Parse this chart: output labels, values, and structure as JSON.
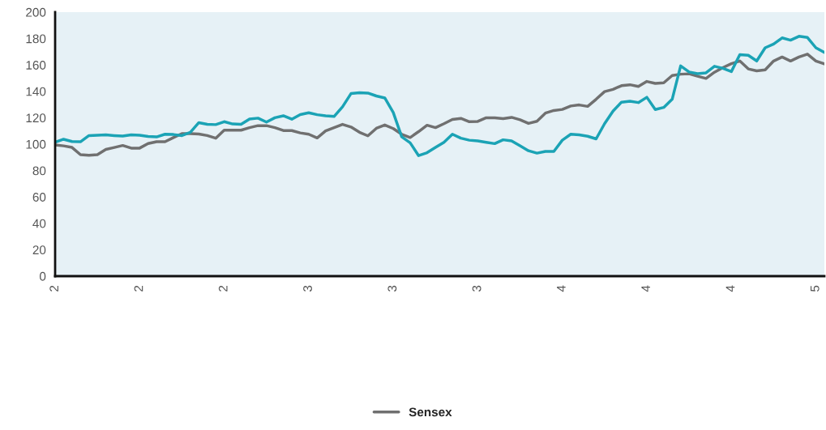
{
  "chart_data": {
    "type": "line",
    "categories": [
      "2",
      null,
      null,
      null,
      null,
      null,
      null,
      null,
      null,
      null,
      "2",
      null,
      null,
      null,
      null,
      null,
      null,
      null,
      null,
      null,
      "2",
      null,
      null,
      null,
      null,
      null,
      null,
      null,
      null,
      null,
      "3",
      null,
      null,
      null,
      null,
      null,
      null,
      null,
      null,
      null,
      "3",
      null,
      null,
      null,
      null,
      null,
      null,
      null,
      null,
      null,
      "3",
      null,
      null,
      null,
      null,
      null,
      null,
      null,
      null,
      null,
      "4",
      null,
      null,
      null,
      null,
      null,
      null,
      null,
      null,
      null,
      "4",
      null,
      null,
      null,
      null,
      null,
      null,
      null,
      null,
      null,
      "4",
      null,
      null,
      null,
      null,
      null,
      null,
      null,
      null,
      null,
      "5",
      null
    ],
    "ylim": [
      0,
      200
    ],
    "yticks": [
      0,
      20,
      40,
      60,
      80,
      100,
      120,
      140,
      160,
      180,
      200
    ],
    "grid": false,
    "legend": "bottom",
    "series": [
      {
        "name": "Sensex",
        "color": "#707070",
        "values": [
          99.4,
          98.7,
          97.5,
          92,
          91.5,
          92,
          96,
          97.5,
          99,
          97,
          97,
          100.5,
          101.8,
          101.8,
          105,
          108,
          108,
          107.7,
          106.5,
          104.5,
          110.6,
          110.6,
          110.6,
          112.5,
          114,
          114,
          112.5,
          110.3,
          110.3,
          108.5,
          107.5,
          104.7,
          110,
          112.5,
          115,
          113,
          109,
          106.3,
          112,
          114.5,
          111.8,
          107.5,
          105,
          109.5,
          114.3,
          112.5,
          115.5,
          118.7,
          119.5,
          117,
          117.2,
          120,
          120,
          119.3,
          120.3,
          118.5,
          115.7,
          117.3,
          123.5,
          125.5,
          126.3,
          128.9,
          129.7,
          128.6,
          134,
          139.8,
          141.5,
          144.3,
          145,
          143.7,
          147.5,
          146,
          146.5,
          152,
          153,
          153.3,
          151.5,
          149.8,
          154.5,
          158,
          161,
          163,
          157,
          155.5,
          156.3,
          163,
          166,
          163,
          166,
          168.2,
          163,
          160.8
        ]
      },
      {
        "color": "#1ba3b5",
        "values": [
          101.4,
          103.7,
          102,
          101.8,
          106.5,
          106.8,
          107,
          106.5,
          106.1,
          107,
          106.8,
          105.8,
          105.5,
          107.5,
          107.3,
          106.5,
          109,
          116.3,
          115,
          114.8,
          117,
          115.3,
          115,
          119,
          119.7,
          116.7,
          120,
          121.5,
          118.9,
          122.4,
          123.8,
          122.3,
          121.5,
          121,
          128.3,
          138.3,
          139,
          138.7,
          136.5,
          135,
          124,
          105.6,
          101,
          91.3,
          93.5,
          97.5,
          101.4,
          107.5,
          104.5,
          103,
          102.4,
          101.4,
          100.4,
          103.3,
          102.5,
          98.8,
          95,
          93.2,
          94.5,
          94.5,
          103,
          107.5,
          107,
          106,
          104,
          115.5,
          125,
          131.8,
          132.5,
          131.5,
          135.5,
          126.2,
          127.8,
          134,
          159.3,
          154.7,
          153.4,
          154,
          159,
          157.4,
          155,
          167.8,
          167.3,
          163,
          173,
          175.8,
          180.5,
          178.8,
          181.7,
          180.8,
          173,
          169.5
        ]
      }
    ]
  }
}
